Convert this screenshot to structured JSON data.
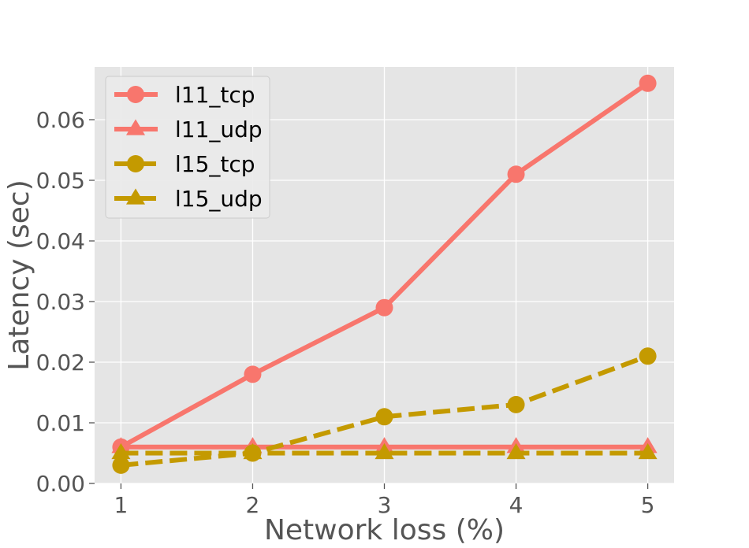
{
  "chart_data": {
    "type": "line",
    "title": "",
    "xlabel": "Network loss (%)",
    "ylabel": "Latency (sec)",
    "x": [
      1,
      2,
      3,
      4,
      5
    ],
    "xlim": [
      0.8,
      5.2
    ],
    "ylim": [
      0,
      0.0687
    ],
    "xticks": [
      1,
      2,
      3,
      4,
      5
    ],
    "xtick_labels": [
      "1",
      "2",
      "3",
      "4",
      "5"
    ],
    "yticks": [
      0,
      0.01,
      0.02,
      0.03,
      0.04,
      0.05,
      0.06
    ],
    "ytick_labels": [
      "0.00",
      "0.01",
      "0.02",
      "0.03",
      "0.04",
      "0.05",
      "0.06"
    ],
    "grid": true,
    "legend_position": "top-left",
    "background_color": "#e5e5e5",
    "grid_color": "#ffffff",
    "series": [
      {
        "name": "l11_tcp",
        "values": [
          0.006,
          0.018,
          0.029,
          0.051,
          0.066
        ],
        "color": "#f8766d",
        "marker": "circle",
        "linestyle": "solid"
      },
      {
        "name": "l11_udp",
        "values": [
          0.006,
          0.006,
          0.006,
          0.006,
          0.006
        ],
        "color": "#f8766d",
        "marker": "triangle",
        "linestyle": "solid"
      },
      {
        "name": "l15_tcp",
        "values": [
          0.003,
          0.005,
          0.011,
          0.013,
          0.021
        ],
        "color": "#c49a00",
        "marker": "circle",
        "linestyle": "dashed"
      },
      {
        "name": "l15_udp",
        "values": [
          0.005,
          0.005,
          0.005,
          0.005,
          0.005
        ],
        "color": "#c49a00",
        "marker": "triangle",
        "linestyle": "dashed"
      }
    ]
  }
}
